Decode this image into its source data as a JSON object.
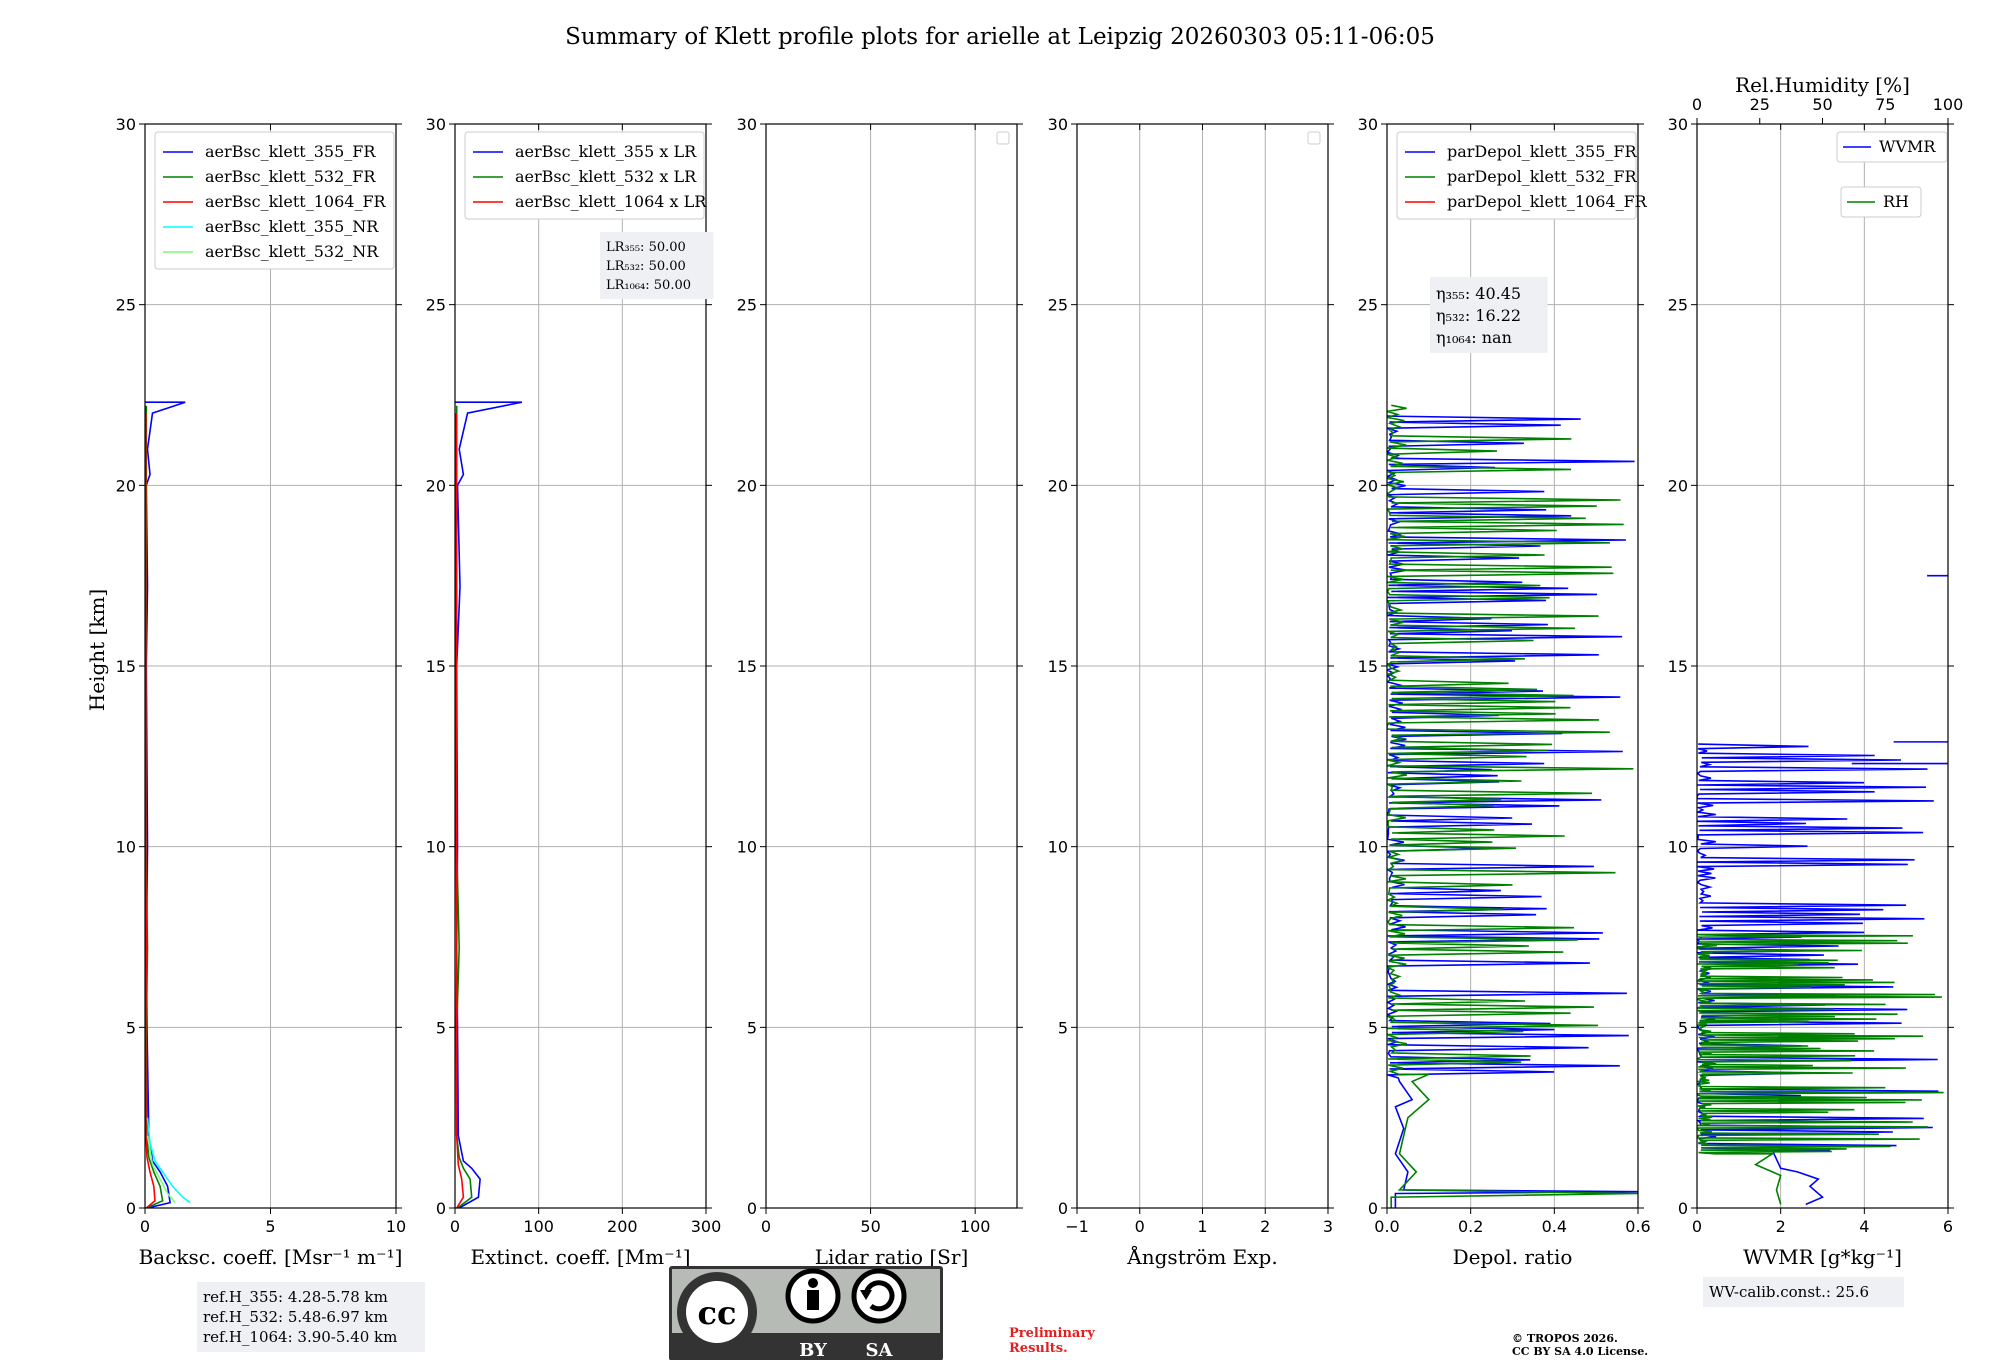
{
  "title": "Summary of Klett profile plots for arielle at Leipzig 20260303 05:11-06:05",
  "ylabel": "Height [km]",
  "yticks": [
    "0",
    "5",
    "10",
    "15",
    "20",
    "25",
    "30"
  ],
  "colors": {
    "blue": "#0000ff",
    "green": "#008000",
    "red": "#ff0000",
    "cyan": "#00ffff",
    "lightgreen": "#7cfc7c"
  },
  "chart_data": [
    {
      "type": "line",
      "name": "backscatter",
      "xlabel": "Backsc. coeff. [Msr⁻¹ m⁻¹]",
      "xlim": [
        0,
        10
      ],
      "ylim": [
        0,
        30
      ],
      "xticks": [
        {
          "v": 0,
          "t": "0"
        },
        {
          "v": 5,
          "t": "5"
        },
        {
          "v": 10,
          "t": "10"
        }
      ],
      "legend": [
        "aerBsc_klett_355_FR",
        "aerBsc_klett_532_FR",
        "aerBsc_klett_1064_FR",
        "aerBsc_klett_355_NR",
        "aerBsc_klett_532_NR"
      ],
      "series": [
        {
          "name": "aerBsc_klett_355_FR",
          "color": "#0000ff",
          "profile": [
            [
              0.1,
              0
            ],
            [
              1.0,
              0.15
            ],
            [
              0.9,
              0.6
            ],
            [
              0.6,
              1.0
            ],
            [
              0.3,
              1.3
            ],
            [
              0.15,
              2
            ],
            [
              0.08,
              5
            ],
            [
              0.06,
              7.2
            ],
            [
              0.1,
              10
            ],
            [
              0.05,
              15
            ],
            [
              0.1,
              17.2
            ],
            [
              0.05,
              20
            ],
            [
              0.2,
              20.3
            ],
            [
              0.1,
              21
            ],
            [
              0.3,
              22
            ],
            [
              1.6,
              22.3
            ],
            [
              0,
              22.3
            ]
          ]
        },
        {
          "name": "aerBsc_klett_532_FR",
          "color": "#008000",
          "profile": [
            [
              0.05,
              0
            ],
            [
              0.7,
              0.2
            ],
            [
              0.6,
              0.6
            ],
            [
              0.35,
              1.0
            ],
            [
              0.15,
              1.4
            ],
            [
              0.07,
              2
            ],
            [
              0.05,
              5
            ],
            [
              0.1,
              7.2
            ],
            [
              0.04,
              10
            ],
            [
              0.04,
              15
            ],
            [
              0.05,
              20
            ],
            [
              0.05,
              22.2
            ]
          ]
        },
        {
          "name": "aerBsc_klett_1064_FR",
          "color": "#ff0000",
          "profile": [
            [
              0.05,
              0
            ],
            [
              0.4,
              0.2
            ],
            [
              0.35,
              0.6
            ],
            [
              0.2,
              1.0
            ],
            [
              0.08,
              1.4
            ],
            [
              0.04,
              2
            ],
            [
              0.03,
              5
            ],
            [
              0.05,
              7.2
            ],
            [
              0.03,
              10
            ],
            [
              0.03,
              15
            ],
            [
              0.03,
              20
            ],
            [
              0.03,
              22
            ]
          ]
        },
        {
          "name": "aerBsc_klett_355_NR",
          "color": "#00ffff",
          "profile": [
            [
              1.8,
              0.15
            ],
            [
              1.5,
              0.3
            ],
            [
              1.1,
              0.6
            ],
            [
              0.7,
              1.0
            ],
            [
              0.4,
              1.3
            ],
            [
              0.2,
              1.8
            ],
            [
              0.1,
              2.5
            ]
          ]
        },
        {
          "name": "aerBsc_klett_532_NR",
          "color": "#7cfc7c",
          "profile": [
            [
              1.2,
              0.15
            ],
            [
              0.9,
              0.4
            ],
            [
              0.6,
              0.8
            ],
            [
              0.3,
              1.2
            ],
            [
              0.1,
              2.0
            ]
          ]
        }
      ],
      "infobox": [
        "ref.H_355: 4.28-5.78 km",
        "ref.H_532: 5.48-6.97 km",
        "ref.H_1064: 3.90-5.40 km"
      ]
    },
    {
      "type": "line",
      "name": "extinction",
      "xlabel": "Extinct. coeff. [Mm⁻¹]",
      "xlim": [
        0,
        300
      ],
      "ylim": [
        0,
        30
      ],
      "xticks": [
        {
          "v": 0,
          "t": "0"
        },
        {
          "v": 100,
          "t": "100"
        },
        {
          "v": 200,
          "t": "200"
        },
        {
          "v": 300,
          "t": "300"
        }
      ],
      "legend": [
        "aerBsc_klett_355 x LR",
        "aerBsc_klett_532 x LR",
        "aerBsc_klett_1064 x LR"
      ],
      "series": [
        {
          "name": "aerBsc_klett_355 x LR",
          "color": "#0000ff",
          "profile": [
            [
              5,
              0
            ],
            [
              28,
              0.3
            ],
            [
              30,
              0.8
            ],
            [
              20,
              1.1
            ],
            [
              10,
              1.3
            ],
            [
              4,
              2
            ],
            [
              3,
              5
            ],
            [
              2,
              7.2
            ],
            [
              3,
              10
            ],
            [
              2,
              15
            ],
            [
              6,
              17.2
            ],
            [
              3,
              20
            ],
            [
              10,
              20.3
            ],
            [
              5,
              21
            ],
            [
              15,
              22
            ],
            [
              80,
              22.3
            ],
            [
              0,
              22.3
            ]
          ]
        },
        {
          "name": "aerBsc_klett_532 x LR",
          "color": "#008000",
          "profile": [
            [
              3,
              0
            ],
            [
              20,
              0.3
            ],
            [
              18,
              0.8
            ],
            [
              10,
              1.1
            ],
            [
              5,
              1.4
            ],
            [
              2,
              2
            ],
            [
              2,
              5
            ],
            [
              5,
              7.2
            ],
            [
              2,
              10
            ],
            [
              2,
              15
            ],
            [
              2,
              20
            ],
            [
              2,
              22.2
            ]
          ]
        },
        {
          "name": "aerBsc_klett_1064 x LR",
          "color": "#ff0000",
          "profile": [
            [
              2,
              0
            ],
            [
              10,
              0.3
            ],
            [
              8,
              0.8
            ],
            [
              4,
              1.2
            ],
            [
              2,
              2
            ],
            [
              1.5,
              5
            ],
            [
              2,
              7.2
            ],
            [
              1.5,
              10
            ],
            [
              1.5,
              15
            ],
            [
              1.5,
              20
            ],
            [
              1.5,
              22
            ]
          ]
        }
      ],
      "infobox": [
        "LR₃₅₅: 50.00",
        "LR₅₃₂: 50.00",
        "LR₁₀₆₄: 50.00"
      ]
    },
    {
      "type": "line",
      "name": "lidar-ratio",
      "xlabel": "Lidar ratio [Sr]",
      "xlim": [
        0,
        120
      ],
      "ylim": [
        0,
        30
      ],
      "xticks": [
        {
          "v": 0,
          "t": "0"
        },
        {
          "v": 50,
          "t": "50"
        },
        {
          "v": 100,
          "t": "100"
        }
      ],
      "legend": [],
      "series": [],
      "infobox": []
    },
    {
      "type": "line",
      "name": "angstrom",
      "xlabel": "Ångström Exp.",
      "xlim": [
        -1,
        3
      ],
      "ylim": [
        0,
        30
      ],
      "xticks": [
        {
          "v": -1,
          "t": "−1"
        },
        {
          "v": 0,
          "t": "0"
        },
        {
          "v": 1,
          "t": "1"
        },
        {
          "v": 2,
          "t": "2"
        },
        {
          "v": 3,
          "t": "3"
        }
      ],
      "legend": [],
      "series": [],
      "infobox": []
    },
    {
      "type": "line",
      "name": "depolarization",
      "xlabel": "Depol. ratio",
      "xlim": [
        0,
        0.6
      ],
      "ylim": [
        0,
        30
      ],
      "xticks": [
        {
          "v": 0,
          "t": "0.0"
        },
        {
          "v": 0.2,
          "t": "0.2"
        },
        {
          "v": 0.4,
          "t": "0.4"
        },
        {
          "v": 0.6,
          "t": "0.6"
        }
      ],
      "legend": [
        "parDepol_klett_355_FR",
        "parDepol_klett_532_FR",
        "parDepol_klett_1064_FR"
      ],
      "series": [
        {
          "name": "parDepol_klett_355_FR",
          "color": "#0000ff",
          "profile": [
            [
              0.02,
              0
            ],
            [
              0.02,
              0.4
            ],
            [
              0.6,
              0.45
            ],
            [
              0.04,
              0.5
            ],
            [
              0.05,
              1.0
            ],
            [
              0.02,
              1.5
            ],
            [
              0.04,
              2.2
            ],
            [
              0.02,
              2.8
            ],
            [
              0.06,
              3.0
            ],
            [
              0.03,
              3.5
            ]
          ],
          "noise": {
            "y0": 3.6,
            "y1": 22.0,
            "n": 110,
            "max": 0.6,
            "seed": 7
          }
        },
        {
          "name": "parDepol_klett_532_FR",
          "color": "#008000",
          "profile": [
            [
              0.01,
              0
            ],
            [
              0.01,
              0.3
            ],
            [
              0.6,
              0.4
            ],
            [
              0.03,
              0.5
            ],
            [
              0.07,
              1.0
            ],
            [
              0.03,
              1.5
            ],
            [
              0.05,
              2.5
            ],
            [
              0.1,
              3.0
            ],
            [
              0.06,
              3.5
            ],
            [
              0.1,
              3.7
            ]
          ],
          "noise": {
            "y0": 3.7,
            "y1": 22.3,
            "n": 110,
            "max": 0.6,
            "seed": 19
          }
        },
        {
          "name": "parDepol_klett_1064_FR",
          "color": "#ff0000",
          "profile": []
        }
      ],
      "infobox": [
        "η₃₅₅: 40.45",
        "η₅₃₂: 16.22",
        "η₁₀₆₄: nan"
      ]
    },
    {
      "type": "line",
      "name": "water-vapor",
      "xlabel": "WVMR [g*kg⁻¹]",
      "xlim": [
        0,
        6
      ],
      "ylim": [
        0,
        30
      ],
      "xticks": [
        {
          "v": 0,
          "t": "0"
        },
        {
          "v": 2,
          "t": "2"
        },
        {
          "v": 4,
          "t": "4"
        },
        {
          "v": 6,
          "t": "6"
        }
      ],
      "top_xlabel": "Rel.Humidity [%]",
      "top_xlim": [
        0,
        100
      ],
      "top_xticks": [
        {
          "v": 0,
          "t": "0"
        },
        {
          "v": 25,
          "t": "25"
        },
        {
          "v": 50,
          "t": "50"
        },
        {
          "v": 75,
          "t": "75"
        },
        {
          "v": 100,
          "t": "100"
        }
      ],
      "legend": [
        "WVMR",
        "RH"
      ],
      "series": [
        {
          "name": "WVMR",
          "color": "#0000ff",
          "profile": [
            [
              2.6,
              0.1
            ],
            [
              3.0,
              0.3
            ],
            [
              2.7,
              0.6
            ],
            [
              2.9,
              0.8
            ],
            [
              2.4,
              1.0
            ],
            [
              2.0,
              1.1
            ],
            [
              1.8,
              1.6
            ]
          ],
          "noise": {
            "y0": 1.6,
            "y1": 12.9,
            "n": 90,
            "max": 6,
            "seed": 3
          },
          "spikes": [
            [
              5.5,
              17.5
            ],
            [
              4.7,
              12.9
            ],
            [
              3.7,
              12.3
            ]
          ]
        },
        {
          "name": "RH",
          "color": "#008000",
          "profile": [
            [
              2.0,
              0.1
            ],
            [
              1.9,
              0.5
            ],
            [
              2.0,
              0.9
            ],
            [
              1.4,
              1.2
            ],
            [
              1.8,
              1.5
            ]
          ],
          "noise": {
            "y0": 1.5,
            "y1": 7.6,
            "n": 90,
            "max": 6,
            "seed": 11
          }
        }
      ],
      "infobox": [
        "WV-calib.const.: 25.6"
      ]
    }
  ],
  "license": {
    "cc": "cc",
    "by": "BY",
    "sa": "SA"
  },
  "preliminary": [
    "Preliminary",
    "Results."
  ],
  "copyright": [
    "© TROPOS 2026.",
    "CC BY SA 4.0 License."
  ]
}
